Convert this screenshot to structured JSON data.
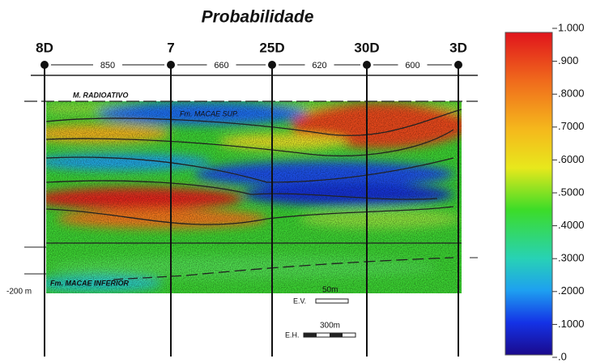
{
  "title": "Probabilidade",
  "wells": [
    "8D",
    "7",
    "25D",
    "30D",
    "3D"
  ],
  "distances": [
    "850",
    "660",
    "620",
    "600"
  ],
  "units": {
    "top": "M. RADIOATIVO",
    "upper": "Fm. MACAE SUP.",
    "lower": "Fm. MACAE INFERIOR"
  },
  "depth_label": "-200 m",
  "scales": {
    "vertical": {
      "length": "50m",
      "label": "E.V."
    },
    "horizontal": {
      "length": "300m",
      "label": "E.H."
    }
  },
  "colorbar": {
    "labels": [
      "1.000",
      ".900",
      ".8000",
      ".7000",
      ".6000",
      ".5000",
      ".4000",
      ".3000",
      ".2000",
      ".1000",
      ".0"
    ]
  }
}
